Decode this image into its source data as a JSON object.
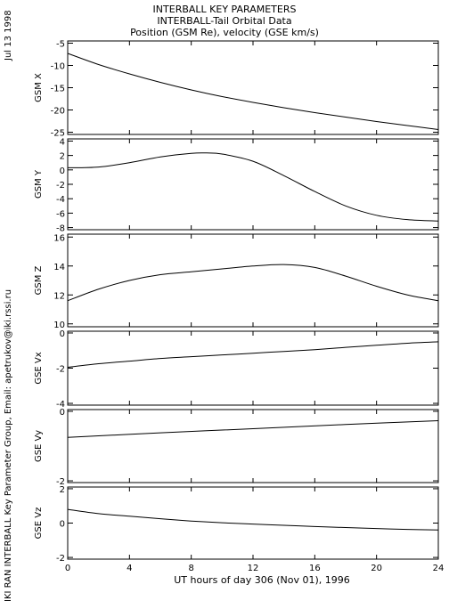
{
  "header": {
    "line1": "INTERBALL KEY PARAMETERS",
    "line2": "INTERBALL-Tail Orbital Data",
    "line3": "Position (GSM Re), velocity (GSE km/s)"
  },
  "side_date": "Jul 13 1998",
  "side_credit": "IKI RAN INTERBALL Key Parameter Group, Email: apetrukov@iki.rssi.ru",
  "chart_data": {
    "type": "line",
    "xlabel": "UT hours of day 306 (Nov 01), 1996",
    "x_ticks": [
      0,
      4,
      8,
      12,
      16,
      20,
      24
    ],
    "xlim": [
      0,
      24
    ],
    "panels": [
      {
        "name": "GSM X",
        "ylim": [
          -25.5,
          -4.5
        ],
        "yticks": [
          -5,
          -10,
          -15,
          -20,
          -25
        ],
        "x": [
          0,
          2,
          4,
          6,
          8,
          10,
          12,
          14,
          16,
          18,
          20,
          22,
          24
        ],
        "y": [
          -7.3,
          -9.8,
          -11.9,
          -13.8,
          -15.5,
          -17.0,
          -18.3,
          -19.5,
          -20.6,
          -21.6,
          -22.6,
          -23.5,
          -24.4
        ]
      },
      {
        "name": "GSM Y",
        "ylim": [
          -8.3,
          4.3
        ],
        "yticks": [
          4,
          2,
          0,
          -2,
          -4,
          -6,
          -8
        ],
        "x": [
          0,
          2,
          4,
          6,
          8,
          9,
          10,
          12,
          14,
          16,
          18,
          20,
          22,
          24
        ],
        "y": [
          0.3,
          0.4,
          1.0,
          1.8,
          2.3,
          2.35,
          2.2,
          1.2,
          -0.8,
          -3.0,
          -5.0,
          -6.3,
          -6.9,
          -7.1
        ]
      },
      {
        "name": "GSM Z",
        "ylim": [
          9.8,
          16.2
        ],
        "yticks": [
          16,
          14,
          12,
          10
        ],
        "x": [
          0,
          2,
          4,
          6,
          8,
          10,
          12,
          14,
          16,
          18,
          20,
          22,
          24
        ],
        "y": [
          11.6,
          12.4,
          13.0,
          13.4,
          13.6,
          13.8,
          14.0,
          14.1,
          13.9,
          13.3,
          12.6,
          12.0,
          11.6
        ]
      },
      {
        "name": "GSE Vx",
        "ylim": [
          -4.1,
          0.1
        ],
        "yticks": [
          0,
          -2,
          -4
        ],
        "x": [
          0,
          2,
          4,
          6,
          8,
          10,
          12,
          14,
          16,
          18,
          20,
          22,
          24
        ],
        "y": [
          -1.95,
          -1.75,
          -1.6,
          -1.45,
          -1.35,
          -1.25,
          -1.15,
          -1.05,
          -0.95,
          -0.82,
          -0.7,
          -0.58,
          -0.5
        ]
      },
      {
        "name": "GSE Vy",
        "ylim": [
          -2.05,
          0.05
        ],
        "yticks": [
          0,
          -2
        ],
        "x": [
          0,
          6,
          12,
          18,
          24
        ],
        "y": [
          -0.75,
          -0.62,
          -0.5,
          -0.38,
          -0.27
        ]
      },
      {
        "name": "GSE Vz",
        "ylim": [
          -2.1,
          2.1
        ],
        "yticks": [
          2,
          0,
          -2
        ],
        "x": [
          0,
          2,
          4,
          6,
          8,
          10,
          12,
          14,
          16,
          18,
          20,
          22,
          24
        ],
        "y": [
          0.8,
          0.55,
          0.4,
          0.25,
          0.12,
          0.02,
          -0.06,
          -0.13,
          -0.2,
          -0.26,
          -0.32,
          -0.37,
          -0.4
        ]
      }
    ]
  }
}
